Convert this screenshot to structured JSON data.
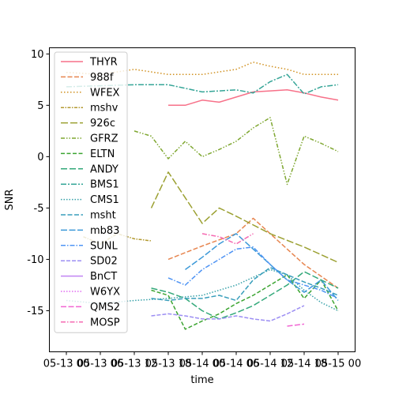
{
  "chart_data": {
    "type": "line",
    "xlabel": "time",
    "ylabel": "SNR",
    "ylim": [
      -19,
      10.6
    ],
    "y_ticks": [
      10,
      5,
      0,
      -5,
      -10,
      -15
    ],
    "x_ticks": [
      "05-13 00",
      "05-13 06",
      "05-13 12",
      "05-13 18",
      "05-14 00",
      "05-14 06",
      "05-14 12",
      "05-14 18",
      "05-15 00"
    ],
    "x_tick_positions": [
      0,
      6,
      12,
      18,
      24,
      30,
      36,
      42,
      48
    ],
    "xlim": [
      -3,
      51
    ],
    "legend_position": "upper-left",
    "series": [
      {
        "name": "THYR",
        "color": "#f77189",
        "dash": "",
        "x": [
          18,
          21,
          24,
          27,
          30,
          33,
          36,
          39,
          42,
          45,
          48
        ],
        "y": [
          5.0,
          5.0,
          5.5,
          5.3,
          5.8,
          6.3,
          6.4,
          6.5,
          6.2,
          5.8,
          5.5
        ]
      },
      {
        "name": "988f",
        "color": "#e7854f",
        "dash": "6,2.5",
        "x": [
          18,
          24,
          30,
          33,
          36,
          39,
          42,
          48
        ],
        "y": [
          -10.0,
          -8.7,
          -7.5,
          -6.0,
          -7.5,
          -9.0,
          -10.5,
          -12.8
        ]
      },
      {
        "name": "WFEX",
        "color": "#d0901f",
        "dash": "1.5,2.5",
        "x": [
          0,
          6,
          12,
          18,
          24,
          30,
          33,
          36,
          39,
          42,
          45,
          48
        ],
        "y": [
          8.2,
          8.0,
          8.5,
          8.0,
          8.0,
          8.5,
          9.2,
          8.8,
          8.5,
          8.0,
          8.0,
          8.0
        ]
      },
      {
        "name": "mshv",
        "color": "#b39a31",
        "dash": "4,1.5,1.5,1.5",
        "x": [
          3,
          6,
          9,
          12,
          15
        ],
        "y": [
          -7.8,
          -8.5,
          -7.5,
          -8.0,
          -8.2
        ]
      },
      {
        "name": "926c",
        "color": "#9ba031",
        "dash": "9,3",
        "x": [
          15,
          18,
          21,
          24,
          27,
          30,
          36,
          42,
          48
        ],
        "y": [
          -5.0,
          -1.5,
          -4.0,
          -6.5,
          -5.0,
          -5.8,
          -7.5,
          -8.8,
          -10.3
        ]
      },
      {
        "name": "GFRZ",
        "color": "#7fa731",
        "dash": "5,2,1.5,2,1.5,2",
        "x": [
          12,
          15,
          18,
          21,
          24,
          27,
          30,
          33,
          36,
          39,
          42,
          45,
          48
        ],
        "y": [
          2.5,
          2.0,
          -0.2,
          1.5,
          0.0,
          0.7,
          1.5,
          2.8,
          3.8,
          -2.7,
          2.0,
          1.3,
          0.5
        ]
      },
      {
        "name": "ELTN",
        "color": "#3ba431",
        "dash": "5,2.5",
        "x": [
          15,
          18,
          21,
          24,
          27,
          30,
          33,
          36,
          39,
          42,
          45,
          48
        ],
        "y": [
          -13.0,
          -13.5,
          -16.8,
          -16.0,
          -15.3,
          -14.3,
          -13.5,
          -12.5,
          -11.5,
          -13.8,
          -12.0,
          -15.0
        ]
      },
      {
        "name": "ANDY",
        "color": "#33a97a",
        "dash": "8,3",
        "x": [
          15,
          18,
          21,
          24,
          27,
          30,
          33,
          36,
          39,
          42,
          45,
          48
        ],
        "y": [
          -12.8,
          -13.2,
          -13.8,
          -15.0,
          -15.8,
          -15.2,
          -14.5,
          -13.5,
          -12.5,
          -11.2,
          -12.0,
          -12.8
        ]
      },
      {
        "name": "BMS1",
        "color": "#35a597",
        "dash": "7,2,2,2",
        "x": [
          0,
          6,
          12,
          18,
          24,
          30,
          33,
          36,
          39,
          42,
          45,
          48
        ],
        "y": [
          6.8,
          6.9,
          7.0,
          7.0,
          6.3,
          6.5,
          6.2,
          7.3,
          8.0,
          6.1,
          6.8,
          7.0
        ]
      },
      {
        "name": "CMS1",
        "color": "#37a1a9",
        "dash": "1.5,2",
        "x": [
          0,
          6,
          12,
          18,
          24,
          30,
          36,
          39,
          42,
          45,
          48
        ],
        "y": [
          -14.0,
          -14.3,
          -14.0,
          -13.8,
          -13.5,
          -12.5,
          -11.0,
          -11.5,
          -13.0,
          -14.2,
          -15.0
        ]
      },
      {
        "name": "msht",
        "color": "#399ebb",
        "dash": "6,2.5",
        "x": [
          15,
          18,
          21,
          24,
          27,
          30,
          33,
          36,
          39,
          42,
          45,
          48
        ],
        "y": [
          -13.8,
          -14.0,
          -13.8,
          -13.8,
          -13.5,
          -14.0,
          -12.0,
          -10.8,
          -11.5,
          -12.2,
          -12.8,
          -13.5
        ]
      },
      {
        "name": "mb83",
        "color": "#3c99d8",
        "dash": "8,2.5",
        "x": [
          21,
          24,
          27,
          30,
          33,
          36,
          39,
          42,
          45,
          48
        ],
        "y": [
          -11.0,
          -9.8,
          -8.5,
          -7.5,
          -9.0,
          -10.5,
          -12.0,
          -13.2,
          -12.0,
          -14.0
        ]
      },
      {
        "name": "SUNL",
        "color": "#4f94f4",
        "dash": "6,2,1.5,2",
        "x": [
          18,
          21,
          24,
          27,
          30,
          33,
          36,
          39,
          42,
          45,
          48
        ],
        "y": [
          -11.8,
          -12.5,
          -11.0,
          -10.0,
          -9.0,
          -8.8,
          -10.5,
          -12.0,
          -12.5,
          -13.0,
          -13.8
        ]
      },
      {
        "name": "SD02",
        "color": "#9c8ef3",
        "dash": "5,2",
        "x": [
          15,
          18,
          21,
          24,
          27,
          30,
          33,
          36,
          39,
          42
        ],
        "y": [
          -15.5,
          -15.3,
          -15.5,
          -15.8,
          -15.8,
          -15.5,
          -15.8,
          -16.0,
          -15.3,
          -14.5
        ]
      },
      {
        "name": "BnCT",
        "color": "#c184f3",
        "dash": "",
        "x": [],
        "y": []
      },
      {
        "name": "W6YX",
        "color": "#e16cf1",
        "dash": "1.5,2",
        "x": [],
        "y": []
      },
      {
        "name": "QMS2",
        "color": "#f166d3",
        "dash": "7,2.5",
        "x": [
          39,
          42
        ],
        "y": [
          -16.5,
          -16.3
        ]
      },
      {
        "name": "MOSP",
        "color": "#f56ab2",
        "dash": "6,2,1.5,2",
        "x": [
          24,
          27,
          30,
          33
        ],
        "y": [
          -7.5,
          -7.8,
          -8.5,
          -7.5
        ]
      }
    ]
  }
}
